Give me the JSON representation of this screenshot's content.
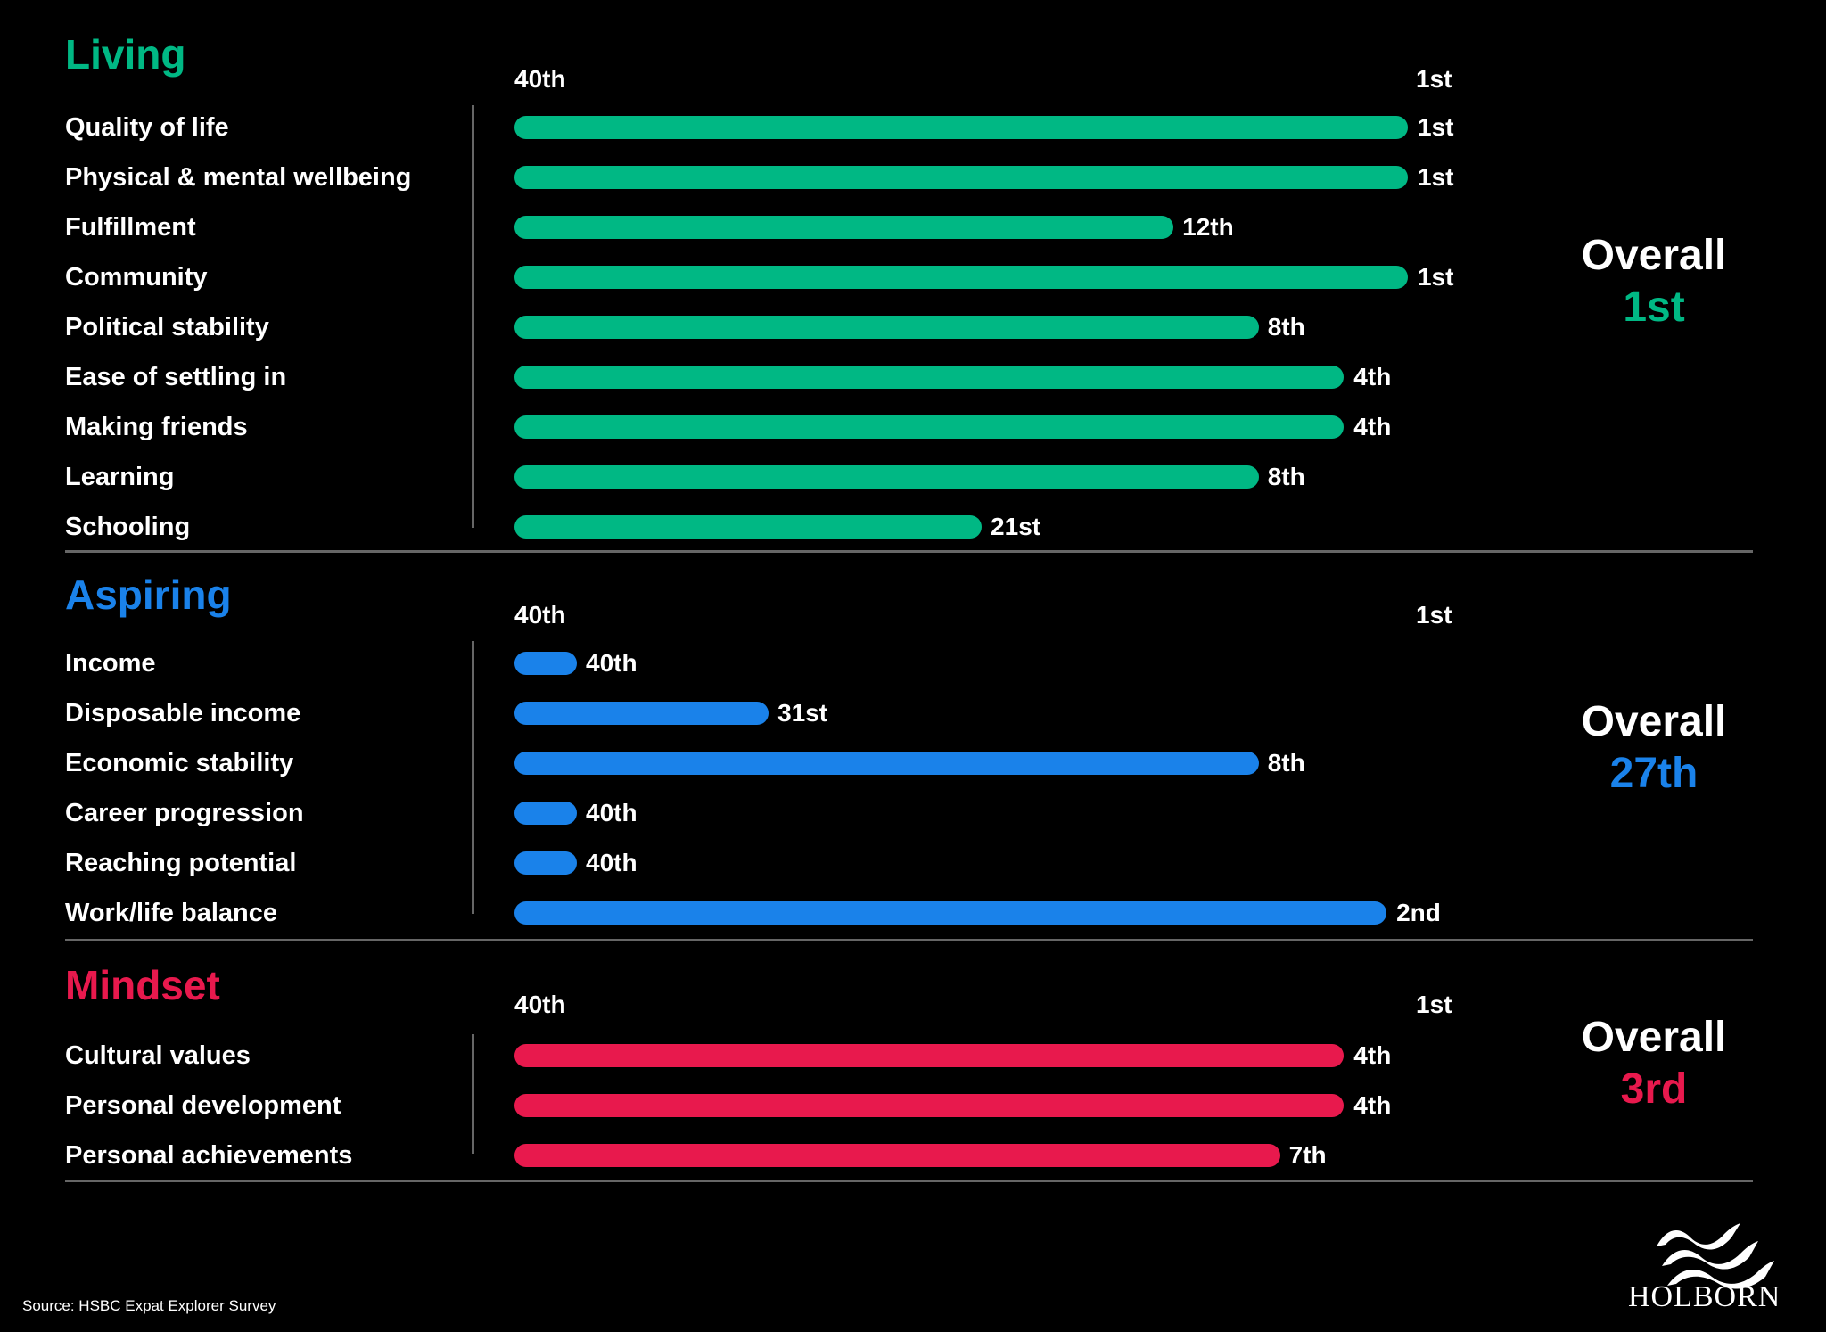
{
  "chart_data": [
    {
      "type": "bar",
      "title": "Living",
      "color": "#00b884",
      "axis_start_label": "40th",
      "axis_end_label": "1st",
      "xlim": [
        40,
        1
      ],
      "categories": [
        "Quality of life",
        "Physical & mental wellbeing",
        "Fulfillment",
        "Community",
        "Political stability",
        "Ease of settling in",
        "Making friends",
        "Learning",
        "Schooling"
      ],
      "values": [
        1,
        1,
        12,
        1,
        8,
        4,
        4,
        8,
        21
      ],
      "value_labels": [
        "1st",
        "1st",
        "12th",
        "1st",
        "8th",
        "4th",
        "4th",
        "8th",
        "21st"
      ],
      "overall_label": "Overall",
      "overall_value": "1st"
    },
    {
      "type": "bar",
      "title": "Aspiring",
      "color": "#1a82ea",
      "axis_start_label": "40th",
      "axis_end_label": "1st",
      "xlim": [
        40,
        1
      ],
      "categories": [
        "Income",
        "Disposable income",
        "Economic stability",
        "Career progression",
        "Reaching potential",
        "Work/life balance"
      ],
      "values": [
        40,
        31,
        8,
        40,
        40,
        2
      ],
      "value_labels": [
        "40th",
        "31st",
        "8th",
        "40th",
        "40th",
        "2nd"
      ],
      "overall_label": "Overall",
      "overall_value": "27th"
    },
    {
      "type": "bar",
      "title": "Mindset",
      "color": "#e8194d",
      "axis_start_label": "40th",
      "axis_end_label": "1st",
      "xlim": [
        40,
        1
      ],
      "categories": [
        "Cultural values",
        "Personal development",
        "Personal achievements"
      ],
      "values": [
        4,
        4,
        7
      ],
      "value_labels": [
        "4th",
        "4th",
        "7th"
      ],
      "overall_label": "Overall",
      "overall_value": "3rd"
    }
  ],
  "source": "Source: HSBC Expat Explorer Survey",
  "logo": {
    "text": "HOLBORN",
    "icon": "waves-logo-icon"
  }
}
